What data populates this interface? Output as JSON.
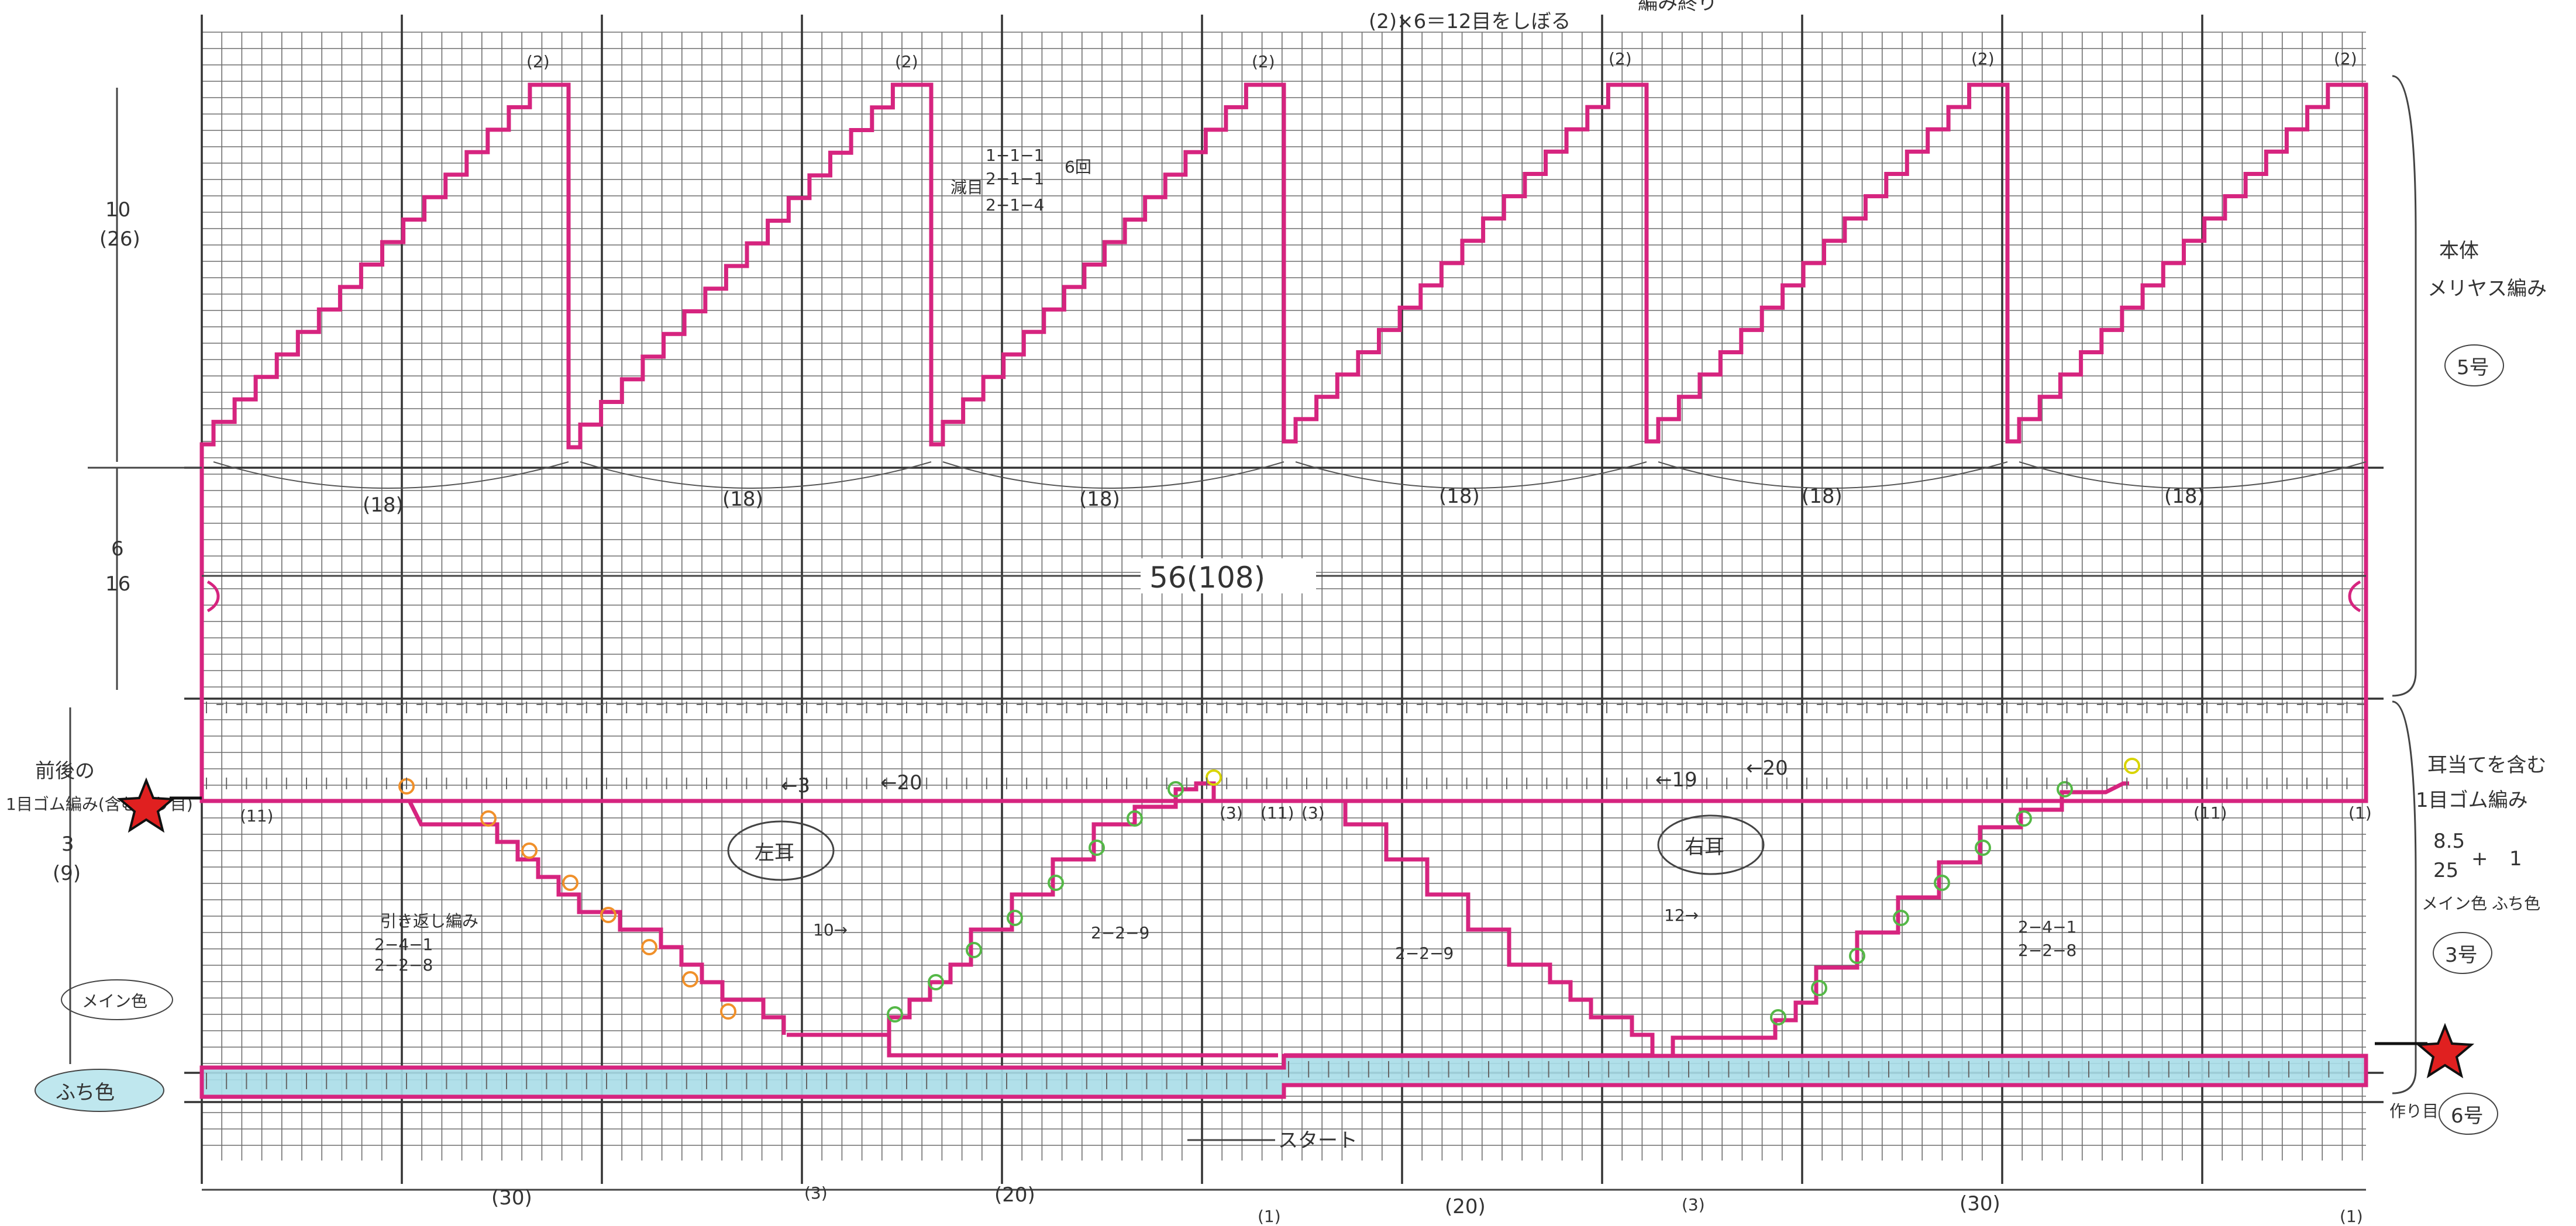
{
  "top_note": "(2)×6＝12目をしぼる",
  "bind_off_note": "編み終り",
  "peak_label": "(2)",
  "decrease_note": {
    "prefix": "減目",
    "line1": "1−1−1",
    "line2": "2−1−1",
    "times": "6回",
    "line3": "2−1−4"
  },
  "section_labels": {
    "body_title": "本体",
    "body_stitch": "メリヤス編み",
    "body_needle": "5号",
    "ear_title": "耳当てを含む",
    "ear_stitch": "1目ゴム編み",
    "ear_ratio_top": "8.5",
    "ear_ratio_bottom": "25",
    "ear_plus": "1",
    "main_color_note": "メイン色",
    "edge_color_note": "ふち色",
    "ear_needle": "3号",
    "edge_needle": "6号",
    "front_back_line1": "前後の",
    "front_back_line2": "1目ゴム編み(含む作り目)",
    "cast_on": "作り目"
  },
  "left_dims": {
    "body_h": "10",
    "body_rows": "(26)",
    "mid_h": "6",
    "mid_rows": "16",
    "bottom_h": "3",
    "bottom_rows": "(9)"
  },
  "segment_labels": [
    "(18)",
    "(18)",
    "(18)",
    "(18)",
    "(18)",
    "(18)"
  ],
  "width_label": "56(108)",
  "ears": {
    "left": "左耳",
    "right": "右耳",
    "arrow_left_3": "←3",
    "arrow_left_20": "←20",
    "arrow_right_19": "←19",
    "arrow_right_20": "←20",
    "arrow_10": "10→",
    "arrow_12": "12→"
  },
  "short_row": {
    "title": "引き返し編み",
    "line1": "2−4−1",
    "line2": "2−2−8",
    "mid_left": "2−2−9",
    "mid_right": "2−2−9",
    "right_line1": "2−4−1",
    "right_line2": "2−2−8"
  },
  "row_labels": {
    "left_11": "(11)",
    "right_11": "(11)",
    "center_3a": "(3)",
    "center_11": "(11)",
    "center_3b": "(3)",
    "right_end_1": "(1)"
  },
  "start_label": "スタート",
  "bottom_dims": [
    "(30)",
    "(3)",
    "(20)",
    "(1)",
    "(20)",
    "(3)",
    "(30)",
    "(1)"
  ],
  "colors": {
    "grid": "#6d6d6d",
    "major_grid": "#333333",
    "outline": "#d6247f",
    "edge_band": "#a8dde8",
    "text": "#333333"
  }
}
